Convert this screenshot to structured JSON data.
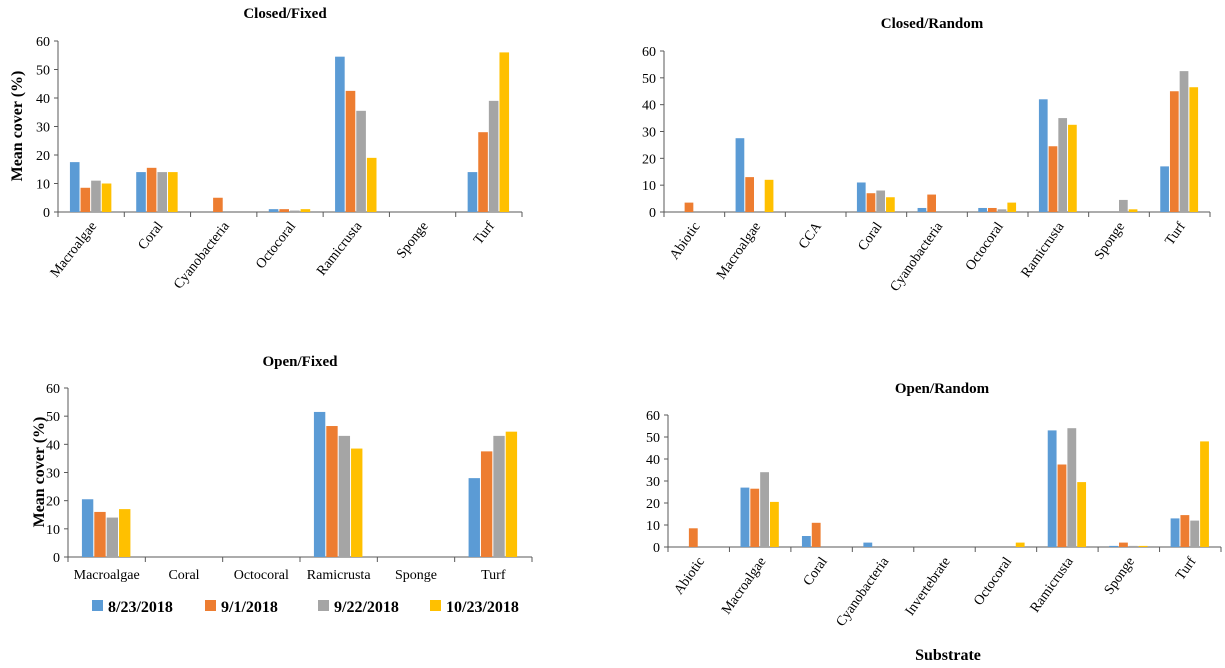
{
  "series_names": [
    "8/23/2018",
    "9/1/2018",
    "9/22/2018",
    "10/23/2018"
  ],
  "series_colors": [
    "#5B9BD5",
    "#ED7D31",
    "#A5A5A5",
    "#FFC000"
  ],
  "shared_xlabel": "Substrate",
  "chart_data": [
    {
      "type": "bar",
      "title": "Closed/Fixed",
      "ylabel": "Mean cover (%)",
      "ylim": [
        0,
        60
      ],
      "yticks": [
        0,
        10,
        20,
        30,
        40,
        50,
        60
      ],
      "categories": [
        "Macroalgae",
        "Coral",
        "Cyanobacteria",
        "Octocoral",
        "Ramicrusta",
        "Sponge",
        "Turf"
      ],
      "series": [
        {
          "name": "8/23/2018",
          "values": [
            17.5,
            14,
            0,
            1,
            54.5,
            0,
            14
          ]
        },
        {
          "name": "9/1/2018",
          "values": [
            8.5,
            15.5,
            5,
            1,
            42.5,
            0,
            28
          ]
        },
        {
          "name": "9/22/2018",
          "values": [
            11,
            14,
            0,
            0.5,
            35.5,
            0,
            39
          ]
        },
        {
          "name": "10/23/2018",
          "values": [
            10,
            14,
            0,
            1,
            19,
            0,
            56
          ]
        }
      ]
    },
    {
      "type": "bar",
      "title": "Closed/Random",
      "ylabel": "",
      "ylim": [
        0,
        60
      ],
      "yticks": [
        0,
        10,
        20,
        30,
        40,
        50,
        60
      ],
      "categories": [
        "Abiotic",
        "Macroalgae",
        "CCA",
        "Coral",
        "Cyanobacteria",
        "Octocoral",
        "Ramicrusta",
        "Sponge",
        "Turf"
      ],
      "series": [
        {
          "name": "8/23/2018",
          "values": [
            0,
            27.5,
            0,
            11,
            1.5,
            1.5,
            42,
            0,
            17
          ]
        },
        {
          "name": "9/1/2018",
          "values": [
            3.5,
            13,
            0,
            7,
            6.5,
            1.5,
            24.5,
            0,
            45
          ]
        },
        {
          "name": "9/22/2018",
          "values": [
            0,
            0,
            0,
            8,
            0,
            1,
            35,
            4.5,
            52.5
          ]
        },
        {
          "name": "10/23/2018",
          "values": [
            0,
            12,
            0,
            5.5,
            0,
            3.5,
            32.5,
            1,
            46.5
          ]
        }
      ]
    },
    {
      "type": "bar",
      "title": "Open/Fixed",
      "ylabel": "Mean cover (%)",
      "ylim": [
        0,
        60
      ],
      "yticks": [
        0,
        10,
        20,
        30,
        40,
        50,
        60
      ],
      "categories": [
        "Macroalgae",
        "Coral",
        "Octocoral",
        "Ramicrusta",
        "Sponge",
        "Turf"
      ],
      "series": [
        {
          "name": "8/23/2018",
          "values": [
            20.5,
            0,
            0,
            51.5,
            0,
            28
          ]
        },
        {
          "name": "9/1/2018",
          "values": [
            16,
            0,
            0,
            46.5,
            0,
            37.5
          ]
        },
        {
          "name": "9/22/2018",
          "values": [
            14,
            0,
            0,
            43,
            0,
            43
          ]
        },
        {
          "name": "10/23/2018",
          "values": [
            17,
            0,
            0,
            38.5,
            0,
            44.5
          ]
        }
      ]
    },
    {
      "type": "bar",
      "title": "Open/Random",
      "ylabel": "",
      "ylim": [
        0,
        60
      ],
      "yticks": [
        0,
        10,
        20,
        30,
        40,
        50,
        60
      ],
      "categories": [
        "Abiotic",
        "Macroalgae",
        "Coral",
        "Cyanobacteria",
        "Invertebrate",
        "Octocoral",
        "Ramicrusta",
        "Sponge",
        "Turf"
      ],
      "series": [
        {
          "name": "8/23/2018",
          "values": [
            0,
            27,
            5,
            2,
            0,
            0,
            53,
            0.5,
            13
          ]
        },
        {
          "name": "9/1/2018",
          "values": [
            8.5,
            26.5,
            11,
            0,
            0,
            0,
            37.5,
            2,
            14.5
          ]
        },
        {
          "name": "9/22/2018",
          "values": [
            0,
            34,
            0,
            0,
            0,
            0,
            54,
            0.5,
            12
          ]
        },
        {
          "name": "10/23/2018",
          "values": [
            0,
            20.5,
            0,
            0,
            0,
            2,
            29.5,
            0.5,
            48
          ]
        }
      ]
    }
  ]
}
